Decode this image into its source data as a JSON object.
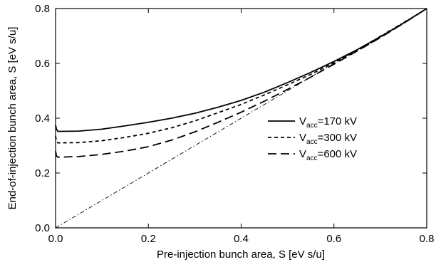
{
  "chart_data": {
    "type": "line",
    "title": "",
    "xlabel": "Pre-injection bunch area, S [eV s/u]",
    "ylabel": "End-of-injection bunch area, S [eV s/u]",
    "xlim": [
      0.0,
      0.8
    ],
    "ylim": [
      0.0,
      0.8
    ],
    "x_ticks": [
      "0.0",
      "0.2",
      "0.4",
      "0.6",
      "0.8"
    ],
    "y_ticks": [
      "0.0",
      "0.2",
      "0.4",
      "0.6",
      "0.8"
    ],
    "grid": false,
    "legend_position": "center-right",
    "series": [
      {
        "name_main": "V",
        "name_sub": "acc",
        "name_rest": "=170 kV",
        "style": "solid",
        "x": [
          0.0,
          0.002,
          0.005,
          0.01,
          0.05,
          0.1,
          0.15,
          0.2,
          0.25,
          0.3,
          0.35,
          0.4,
          0.45,
          0.5,
          0.55,
          0.6,
          0.65,
          0.7,
          0.75,
          0.8
        ],
        "y": [
          0.375,
          0.36,
          0.352,
          0.352,
          0.353,
          0.36,
          0.372,
          0.385,
          0.4,
          0.418,
          0.44,
          0.465,
          0.495,
          0.53,
          0.567,
          0.607,
          0.65,
          0.697,
          0.747,
          0.8
        ]
      },
      {
        "name_main": "V",
        "name_sub": "acc",
        "name_rest": "=300 kV",
        "style": "dashed",
        "x": [
          0.0,
          0.002,
          0.005,
          0.01,
          0.05,
          0.1,
          0.15,
          0.2,
          0.25,
          0.3,
          0.35,
          0.4,
          0.45,
          0.5,
          0.55,
          0.6,
          0.65,
          0.7,
          0.75,
          0.8
        ],
        "y": [
          0.335,
          0.315,
          0.31,
          0.31,
          0.311,
          0.318,
          0.33,
          0.345,
          0.365,
          0.39,
          0.42,
          0.45,
          0.485,
          0.522,
          0.56,
          0.602,
          0.646,
          0.695,
          0.746,
          0.8
        ]
      },
      {
        "name_main": "V",
        "name_sub": "acc",
        "name_rest": "=600 kV",
        "style": "long-dashed",
        "x": [
          0.0,
          0.002,
          0.005,
          0.01,
          0.05,
          0.1,
          0.15,
          0.2,
          0.25,
          0.3,
          0.35,
          0.4,
          0.45,
          0.5,
          0.55,
          0.6,
          0.65,
          0.7,
          0.75,
          0.8
        ],
        "y": [
          0.28,
          0.262,
          0.258,
          0.258,
          0.26,
          0.268,
          0.28,
          0.296,
          0.32,
          0.35,
          0.385,
          0.422,
          0.462,
          0.505,
          0.55,
          0.597,
          0.645,
          0.694,
          0.746,
          0.8
        ]
      },
      {
        "name": "",
        "style": "dash-dot",
        "x": [
          0.0,
          0.8
        ],
        "y": [
          0.0,
          0.8
        ]
      }
    ]
  }
}
